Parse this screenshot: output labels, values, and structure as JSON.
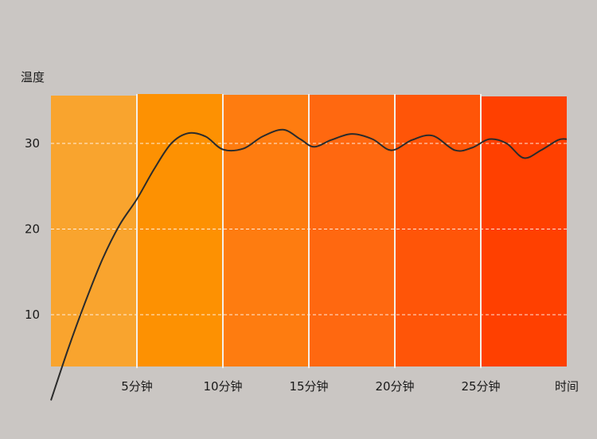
{
  "chart_data": {
    "type": "line",
    "ylabel": "温度",
    "xlabel": "时间",
    "x_ticks": [
      {
        "value": 5,
        "label": "5分钟"
      },
      {
        "value": 10,
        "label": "10分钟"
      },
      {
        "value": 15,
        "label": "15分钟"
      },
      {
        "value": 20,
        "label": "20分钟"
      },
      {
        "value": 25,
        "label": "25分钟"
      }
    ],
    "y_ticks": [
      {
        "value": 10,
        "label": "10"
      },
      {
        "value": 20,
        "label": "20"
      },
      {
        "value": 30,
        "label": "30"
      }
    ],
    "xlim": [
      0,
      30
    ],
    "ylim": [
      0,
      36
    ],
    "grid": true,
    "bands": [
      {
        "from": 0,
        "to": 5,
        "color": "#f9a42e"
      },
      {
        "from": 5,
        "to": 10,
        "color": "#fd9102"
      },
      {
        "from": 10,
        "to": 15,
        "color": "#fe7c10"
      },
      {
        "from": 15,
        "to": 20,
        "color": "#ff6810"
      },
      {
        "from": 20,
        "to": 25,
        "color": "#ff5508"
      },
      {
        "from": 25,
        "to": 30,
        "color": "#ff4000"
      }
    ],
    "line_color": "#2b2b2b",
    "points": [
      [
        0,
        0
      ],
      [
        1,
        6
      ],
      [
        2,
        11.5
      ],
      [
        3,
        16.5
      ],
      [
        4,
        20.5
      ],
      [
        5,
        23.5
      ],
      [
        6,
        27
      ],
      [
        7,
        30
      ],
      [
        8,
        31.2
      ],
      [
        9,
        30.8
      ],
      [
        10,
        29.3
      ],
      [
        11.2,
        29.4
      ],
      [
        12.3,
        30.8
      ],
      [
        13.5,
        31.6
      ],
      [
        14.5,
        30.5
      ],
      [
        15.3,
        29.6
      ],
      [
        16.3,
        30.4
      ],
      [
        17.5,
        31.1
      ],
      [
        18.7,
        30.5
      ],
      [
        19.8,
        29.2
      ],
      [
        21,
        30.4
      ],
      [
        22.2,
        30.9
      ],
      [
        23.5,
        29.2
      ],
      [
        24.5,
        29.5
      ],
      [
        25.5,
        30.5
      ],
      [
        26.5,
        30
      ],
      [
        27.5,
        28.3
      ],
      [
        28.5,
        29.2
      ],
      [
        29.5,
        30.4
      ],
      [
        30,
        30.5
      ]
    ]
  }
}
